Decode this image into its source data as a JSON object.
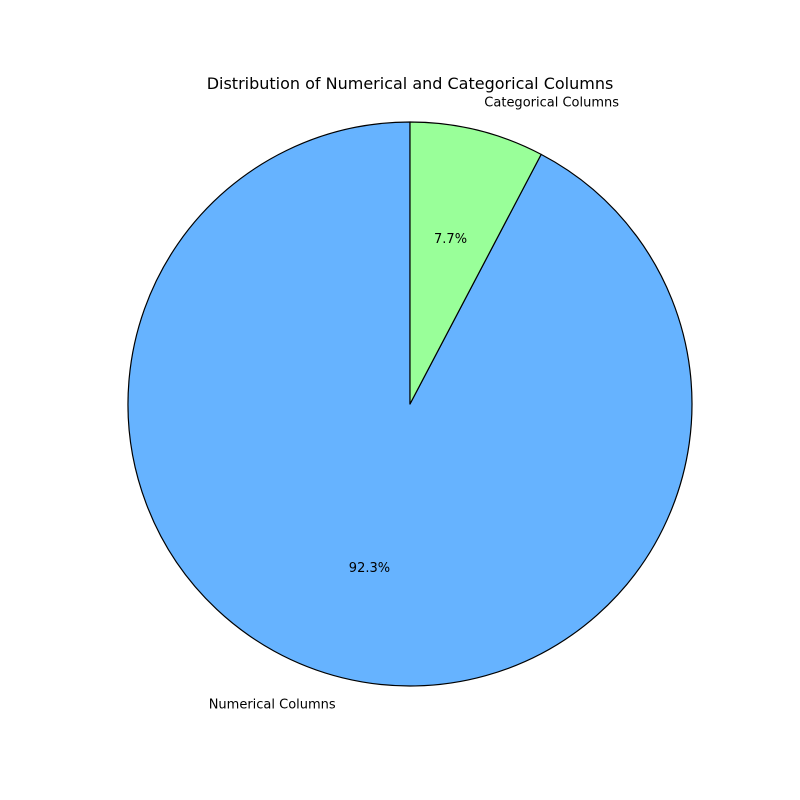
{
  "chart_data": {
    "type": "pie",
    "title": "Distribution of Numerical and Categorical Columns",
    "slices": [
      {
        "label": "Numerical Columns",
        "value": 92.3,
        "pct_label": "92.3%",
        "color": "#66b3ff"
      },
      {
        "label": "Categorical Columns",
        "value": 7.7,
        "pct_label": "7.7%",
        "color": "#99ff99"
      }
    ],
    "start_angle_deg": 90,
    "direction": "counterclockwise",
    "edge_color": "#000000",
    "legend": false
  }
}
